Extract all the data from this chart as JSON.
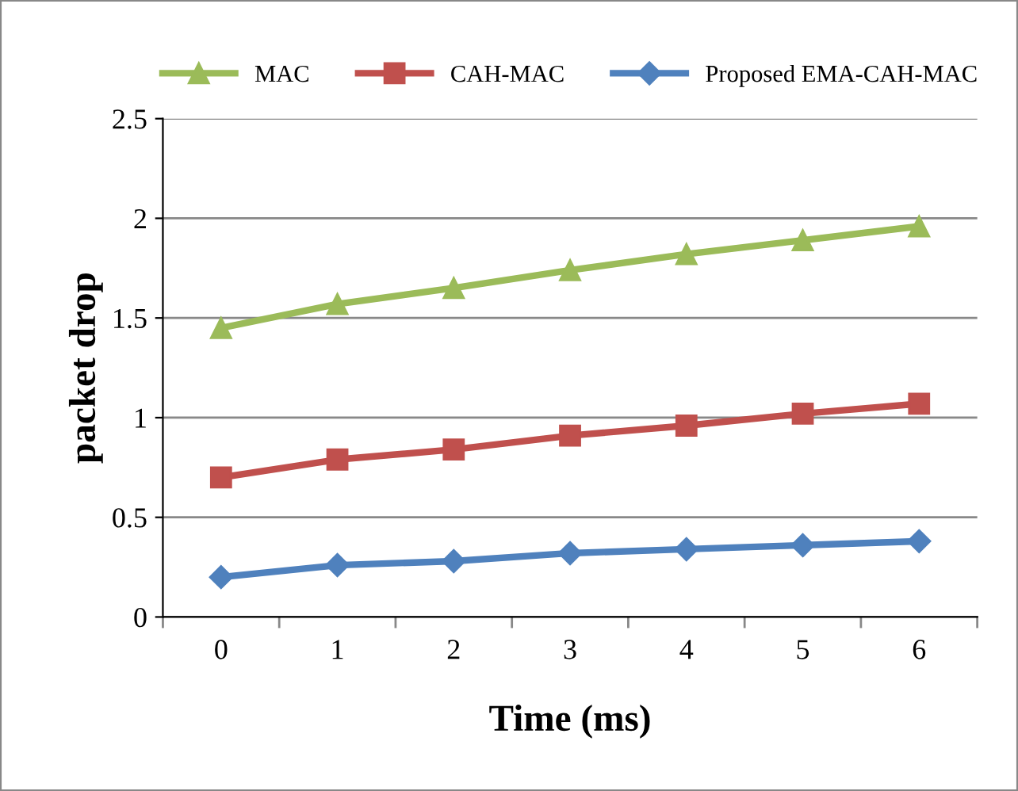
{
  "chart_data": {
    "type": "line",
    "xlabel": "Time (ms)",
    "ylabel": "packet drop",
    "categories": [
      "0",
      "1",
      "2",
      "3",
      "4",
      "5",
      "6"
    ],
    "series": [
      {
        "name": "MAC",
        "color": "#9bbb59",
        "marker": "triangle",
        "values": [
          1.45,
          1.57,
          1.65,
          1.74,
          1.82,
          1.89,
          1.96
        ]
      },
      {
        "name": "CAH-MAC",
        "color": "#c0504d",
        "marker": "square",
        "values": [
          0.7,
          0.79,
          0.84,
          0.91,
          0.96,
          1.02,
          1.07
        ]
      },
      {
        "name": "Proposed EMA-CAH-MAC",
        "color": "#4f81bd",
        "marker": "diamond",
        "values": [
          0.2,
          0.26,
          0.28,
          0.32,
          0.34,
          0.36,
          0.38
        ]
      }
    ],
    "ylim": [
      0,
      2.5
    ],
    "yticks": [
      0,
      0.5,
      1,
      1.5,
      2,
      2.5
    ],
    "grid": "y",
    "legend": "top",
    "line_style": "solid"
  }
}
